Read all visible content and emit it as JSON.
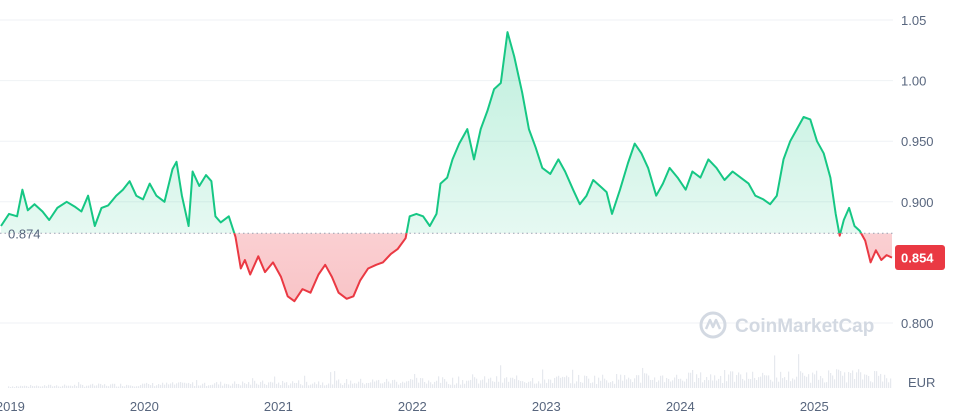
{
  "chart_data": {
    "type": "area",
    "x_labels": [
      "2019",
      "2020",
      "2021",
      "2022",
      "2023",
      "2024",
      "2025"
    ],
    "y_ticks": [
      "1.05",
      "1.00",
      "0.950",
      "0.900",
      "0.800"
    ],
    "ylim": [
      0.775,
      1.065
    ],
    "xlim": [
      2018.93,
      2025.58
    ],
    "baseline_label": "0.874",
    "baseline_value": 0.874,
    "current_label": "0.854",
    "current_value": 0.854,
    "unit_label": "EUR",
    "grid": true,
    "colors": {
      "up": "#16c784",
      "down": "#ea3943",
      "axis_text": "#58667e",
      "badge": "#ea3943"
    },
    "series": [
      {
        "values": [
          [
            2018.93,
            0.88
          ],
          [
            2018.99,
            0.89
          ],
          [
            2019.05,
            0.888
          ],
          [
            2019.09,
            0.91
          ],
          [
            2019.13,
            0.893
          ],
          [
            2019.18,
            0.898
          ],
          [
            2019.24,
            0.892
          ],
          [
            2019.29,
            0.885
          ],
          [
            2019.35,
            0.895
          ],
          [
            2019.42,
            0.9
          ],
          [
            2019.48,
            0.896
          ],
          [
            2019.53,
            0.892
          ],
          [
            2019.58,
            0.905
          ],
          [
            2019.63,
            0.88
          ],
          [
            2019.68,
            0.895
          ],
          [
            2019.73,
            0.897
          ],
          [
            2019.79,
            0.905
          ],
          [
            2019.84,
            0.91
          ],
          [
            2019.89,
            0.917
          ],
          [
            2019.94,
            0.905
          ],
          [
            2019.99,
            0.902
          ],
          [
            2020.04,
            0.915
          ],
          [
            2020.09,
            0.905
          ],
          [
            2020.15,
            0.9
          ],
          [
            2020.21,
            0.927
          ],
          [
            2020.24,
            0.933
          ],
          [
            2020.28,
            0.905
          ],
          [
            2020.33,
            0.88
          ],
          [
            2020.36,
            0.925
          ],
          [
            2020.41,
            0.913
          ],
          [
            2020.46,
            0.922
          ],
          [
            2020.5,
            0.917
          ],
          [
            2020.53,
            0.888
          ],
          [
            2020.57,
            0.883
          ],
          [
            2020.63,
            0.888
          ],
          [
            2020.68,
            0.871
          ],
          [
            2020.72,
            0.845
          ],
          [
            2020.75,
            0.852
          ],
          [
            2020.79,
            0.84
          ],
          [
            2020.85,
            0.855
          ],
          [
            2020.9,
            0.842
          ],
          [
            2020.96,
            0.85
          ],
          [
            2021.02,
            0.838
          ],
          [
            2021.07,
            0.822
          ],
          [
            2021.12,
            0.818
          ],
          [
            2021.18,
            0.828
          ],
          [
            2021.24,
            0.825
          ],
          [
            2021.3,
            0.84
          ],
          [
            2021.35,
            0.848
          ],
          [
            2021.4,
            0.838
          ],
          [
            2021.45,
            0.825
          ],
          [
            2021.51,
            0.82
          ],
          [
            2021.56,
            0.822
          ],
          [
            2021.61,
            0.835
          ],
          [
            2021.67,
            0.845
          ],
          [
            2021.73,
            0.848
          ],
          [
            2021.78,
            0.85
          ],
          [
            2021.84,
            0.857
          ],
          [
            2021.89,
            0.861
          ],
          [
            2021.95,
            0.87
          ],
          [
            2021.98,
            0.888
          ],
          [
            2022.03,
            0.89
          ],
          [
            2022.08,
            0.888
          ],
          [
            2022.13,
            0.88
          ],
          [
            2022.18,
            0.89
          ],
          [
            2022.21,
            0.915
          ],
          [
            2022.26,
            0.92
          ],
          [
            2022.3,
            0.935
          ],
          [
            2022.35,
            0.948
          ],
          [
            2022.41,
            0.96
          ],
          [
            2022.46,
            0.935
          ],
          [
            2022.51,
            0.96
          ],
          [
            2022.56,
            0.975
          ],
          [
            2022.61,
            0.993
          ],
          [
            2022.66,
            0.998
          ],
          [
            2022.71,
            1.04
          ],
          [
            2022.76,
            1.02
          ],
          [
            2022.82,
            0.99
          ],
          [
            2022.87,
            0.96
          ],
          [
            2022.92,
            0.945
          ],
          [
            2022.97,
            0.928
          ],
          [
            2023.03,
            0.923
          ],
          [
            2023.09,
            0.935
          ],
          [
            2023.14,
            0.925
          ],
          [
            2023.2,
            0.91
          ],
          [
            2023.25,
            0.898
          ],
          [
            2023.3,
            0.905
          ],
          [
            2023.35,
            0.918
          ],
          [
            2023.41,
            0.912
          ],
          [
            2023.45,
            0.908
          ],
          [
            2023.49,
            0.89
          ],
          [
            2023.55,
            0.91
          ],
          [
            2023.61,
            0.932
          ],
          [
            2023.66,
            0.948
          ],
          [
            2023.71,
            0.94
          ],
          [
            2023.76,
            0.928
          ],
          [
            2023.82,
            0.905
          ],
          [
            2023.87,
            0.915
          ],
          [
            2023.92,
            0.928
          ],
          [
            2023.98,
            0.92
          ],
          [
            2024.04,
            0.91
          ],
          [
            2024.09,
            0.925
          ],
          [
            2024.15,
            0.92
          ],
          [
            2024.21,
            0.935
          ],
          [
            2024.27,
            0.928
          ],
          [
            2024.33,
            0.918
          ],
          [
            2024.39,
            0.925
          ],
          [
            2024.45,
            0.92
          ],
          [
            2024.51,
            0.915
          ],
          [
            2024.56,
            0.905
          ],
          [
            2024.62,
            0.902
          ],
          [
            2024.67,
            0.898
          ],
          [
            2024.72,
            0.905
          ],
          [
            2024.77,
            0.935
          ],
          [
            2024.82,
            0.95
          ],
          [
            2024.87,
            0.96
          ],
          [
            2024.92,
            0.97
          ],
          [
            2024.97,
            0.968
          ],
          [
            2025.02,
            0.95
          ],
          [
            2025.07,
            0.94
          ],
          [
            2025.12,
            0.92
          ],
          [
            2025.16,
            0.89
          ],
          [
            2025.19,
            0.872
          ],
          [
            2025.22,
            0.885
          ],
          [
            2025.26,
            0.895
          ],
          [
            2025.3,
            0.88
          ],
          [
            2025.34,
            0.876
          ],
          [
            2025.38,
            0.868
          ],
          [
            2025.42,
            0.85
          ],
          [
            2025.46,
            0.86
          ],
          [
            2025.5,
            0.852
          ],
          [
            2025.54,
            0.856
          ],
          [
            2025.58,
            0.854
          ]
        ]
      }
    ]
  }
}
